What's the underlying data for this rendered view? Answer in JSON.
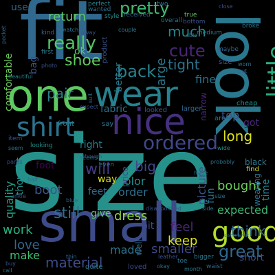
{
  "background": "#000000",
  "palette": {
    "dark_purple": "#440154",
    "indigo": "#3b528b",
    "blue": "#31688e",
    "teal": "#21918c",
    "green": "#35b779",
    "light_green": "#8fd744",
    "yellow": "#dde318"
  },
  "words": [
    {
      "text": "size",
      "color": "#26918b"
    },
    {
      "text": "fit",
      "color": "#31688e"
    },
    {
      "text": "look",
      "color": "#2a788e"
    },
    {
      "text": "one",
      "color": "#5ec962"
    },
    {
      "text": "small",
      "color": "#3e4b89"
    },
    {
      "text": "wear",
      "color": "#26828e"
    },
    {
      "text": "nice",
      "color": "#46307e"
    },
    {
      "text": "little",
      "color": "#29af7f"
    },
    {
      "text": "shirt",
      "color": "#2c738e"
    },
    {
      "text": "good",
      "color": "#b5de2b"
    },
    {
      "text": "ordered",
      "color": "#3f4889"
    },
    {
      "text": "really",
      "color": "#52c569"
    },
    {
      "text": "pretty",
      "color": "#3ebc73"
    },
    {
      "text": "shoe",
      "color": "#63cb5f"
    },
    {
      "text": "cute",
      "color": "#482777"
    },
    {
      "text": "much",
      "color": "#24868e"
    },
    {
      "text": "tight",
      "color": "#2c738e"
    },
    {
      "text": "back",
      "color": "#26828e"
    },
    {
      "text": "big",
      "color": "#3f4889"
    },
    {
      "text": "still",
      "color": "#2d708e"
    },
    {
      "text": "dress",
      "color": "#8fd744"
    },
    {
      "text": "great",
      "color": "#31688e"
    },
    {
      "text": "will",
      "color": "#443983"
    },
    {
      "text": "long",
      "color": "#dde318"
    },
    {
      "text": "material",
      "color": "#3e4b89"
    },
    {
      "text": "bought",
      "color": "#6ccd5a"
    },
    {
      "text": "fine",
      "color": "#2c738e"
    },
    {
      "text": "large",
      "color": "#2a788e"
    },
    {
      "text": "return",
      "color": "#5ec962"
    },
    {
      "text": "boot",
      "color": "#3b528b"
    },
    {
      "text": "think",
      "color": "#31688e"
    },
    {
      "text": "keep",
      "color": "#dde318"
    },
    {
      "text": "expected",
      "color": "#3ebc73"
    },
    {
      "text": "feel",
      "color": "#482878"
    },
    {
      "text": "pair",
      "color": "#26828e"
    },
    {
      "text": "love",
      "color": "#31688e"
    },
    {
      "text": "work",
      "color": "#29af7f"
    },
    {
      "text": "made",
      "color": "#2c738e"
    },
    {
      "text": "smaller",
      "color": "#3f4889"
    },
    {
      "text": "order",
      "color": "#2d708e"
    },
    {
      "text": "color",
      "color": "#21918c"
    },
    {
      "text": "picture",
      "color": "#3b528b"
    },
    {
      "text": "way",
      "color": "#dde318"
    },
    {
      "text": "feet",
      "color": "#31688e"
    },
    {
      "text": "fun",
      "color": "#2c738e"
    },
    {
      "text": "top",
      "color": "#3b528b"
    },
    {
      "text": "short",
      "color": "#3e4b89"
    },
    {
      "text": "make",
      "color": "#3ebc73"
    },
    {
      "text": "quality",
      "color": "#1fa187"
    },
    {
      "text": "thought",
      "color": "#21918c"
    },
    {
      "text": "comfortable",
      "color": "#6ccd5a"
    },
    {
      "text": "fabric",
      "color": "#2c738e"
    },
    {
      "text": "give",
      "color": "#5ec962"
    },
    {
      "text": "bit",
      "color": "#3e4b89"
    },
    {
      "text": "right",
      "color": "#26828e"
    },
    {
      "text": "got",
      "color": "#482777"
    },
    {
      "text": "better",
      "color": "#2a788e"
    },
    {
      "text": "ok",
      "color": "#5ec962"
    },
    {
      "text": "use",
      "color": "#31688e"
    },
    {
      "text": "bag",
      "color": "#3b528b"
    },
    {
      "text": "foot",
      "color": "#440154"
    },
    {
      "text": "black",
      "color": "#2a788e"
    },
    {
      "text": "time",
      "color": "#26828e"
    },
    {
      "text": "wearing",
      "color": "#2c738e"
    },
    {
      "text": "well",
      "color": "#31688e"
    },
    {
      "text": "price",
      "color": "#3f4889"
    },
    {
      "text": "area",
      "color": "#2c738e"
    },
    {
      "text": "find",
      "color": "#dde318"
    },
    {
      "text": "front",
      "color": "#2a788e"
    },
    {
      "text": "narrow",
      "color": "#482777"
    },
    {
      "text": "larger",
      "color": "#31688e"
    },
    {
      "text": "cheap",
      "color": "#21918c"
    },
    {
      "text": "looked",
      "color": "#3b528b"
    },
    {
      "text": "size",
      "color": "#3b528b"
    },
    {
      "text": "loved",
      "color": "#3e4b89"
    },
    {
      "text": "quite",
      "color": "#2a788e"
    },
    {
      "text": "perfect",
      "color": "#26828e"
    },
    {
      "text": "wanted",
      "color": "#2c738e"
    },
    {
      "text": "style",
      "color": "#21918c"
    },
    {
      "text": "received",
      "color": "#31688e"
    },
    {
      "text": "two",
      "color": "#2c738e"
    },
    {
      "text": "true",
      "color": "#5ec962"
    },
    {
      "text": "close",
      "color": "#3b528b"
    },
    {
      "text": "overall",
      "color": "#2c738e"
    },
    {
      "text": "bottom",
      "color": "#3b528b"
    },
    {
      "text": "first",
      "color": "#2a788e"
    },
    {
      "text": "kind",
      "color": "#31688e"
    },
    {
      "text": "watch",
      "color": "#2c738e"
    },
    {
      "text": "away",
      "color": "#3b528b"
    },
    {
      "text": "medium",
      "color": "#2a788e"
    },
    {
      "text": "broke",
      "color": "#2c738e"
    },
    {
      "text": "maybe",
      "color": "#31688e"
    },
    {
      "text": "product",
      "color": "#3b528b"
    },
    {
      "text": "able",
      "color": "#2c738e"
    },
    {
      "text": "couple",
      "color": "#2a788e"
    },
    {
      "text": "photo",
      "color": "#3b528b"
    },
    {
      "text": "worn",
      "color": "#2c738e"
    },
    {
      "text": "put",
      "color": "#31688e"
    },
    {
      "text": "beautiful",
      "color": "#26828e"
    },
    {
      "text": "expect",
      "color": "#3b528b"
    },
    {
      "text": "suit",
      "color": "#31688e"
    },
    {
      "text": "wide",
      "color": "#21918c"
    },
    {
      "text": "bigger",
      "color": "#2a788e"
    },
    {
      "text": "disappointed",
      "color": "#3b528b"
    },
    {
      "text": "seem",
      "color": "#2c738e"
    },
    {
      "text": "half",
      "color": "#31688e"
    },
    {
      "text": "item",
      "color": "#3b528b"
    },
    {
      "text": "even",
      "color": "#2a788e"
    },
    {
      "text": "probably",
      "color": "#2c738e"
    },
    {
      "text": "looking",
      "color": "#21918c"
    },
    {
      "text": "huge",
      "color": "#31688e"
    },
    {
      "text": "ankle",
      "color": "#3b528b"
    },
    {
      "text": "toe",
      "color": "#2c738e"
    },
    {
      "text": "month",
      "color": "#2a788e"
    },
    {
      "text": "waist",
      "color": "#31688e"
    },
    {
      "text": "okay",
      "color": "#2c738e"
    },
    {
      "text": "leather",
      "color": "#3b528b"
    },
    {
      "text": "side",
      "color": "#2a788e"
    },
    {
      "text": "somewhat",
      "color": "#2c738e"
    },
    {
      "text": "thin",
      "color": "#31688e"
    },
    {
      "text": "buy",
      "color": "#3b528b"
    },
    {
      "text": "call",
      "color": "#2c738e"
    },
    {
      "text": "blue",
      "color": "#31688e"
    },
    {
      "text": "pants",
      "color": "#3b528b"
    },
    {
      "text": "seems",
      "color": "#2c738e"
    },
    {
      "text": "say",
      "color": "#2a788e"
    },
    {
      "text": "pocket",
      "color": "#31688e"
    },
    {
      "text": "though",
      "color": "#3b528b"
    },
    {
      "text": "size",
      "color": "#2c738e"
    }
  ]
}
